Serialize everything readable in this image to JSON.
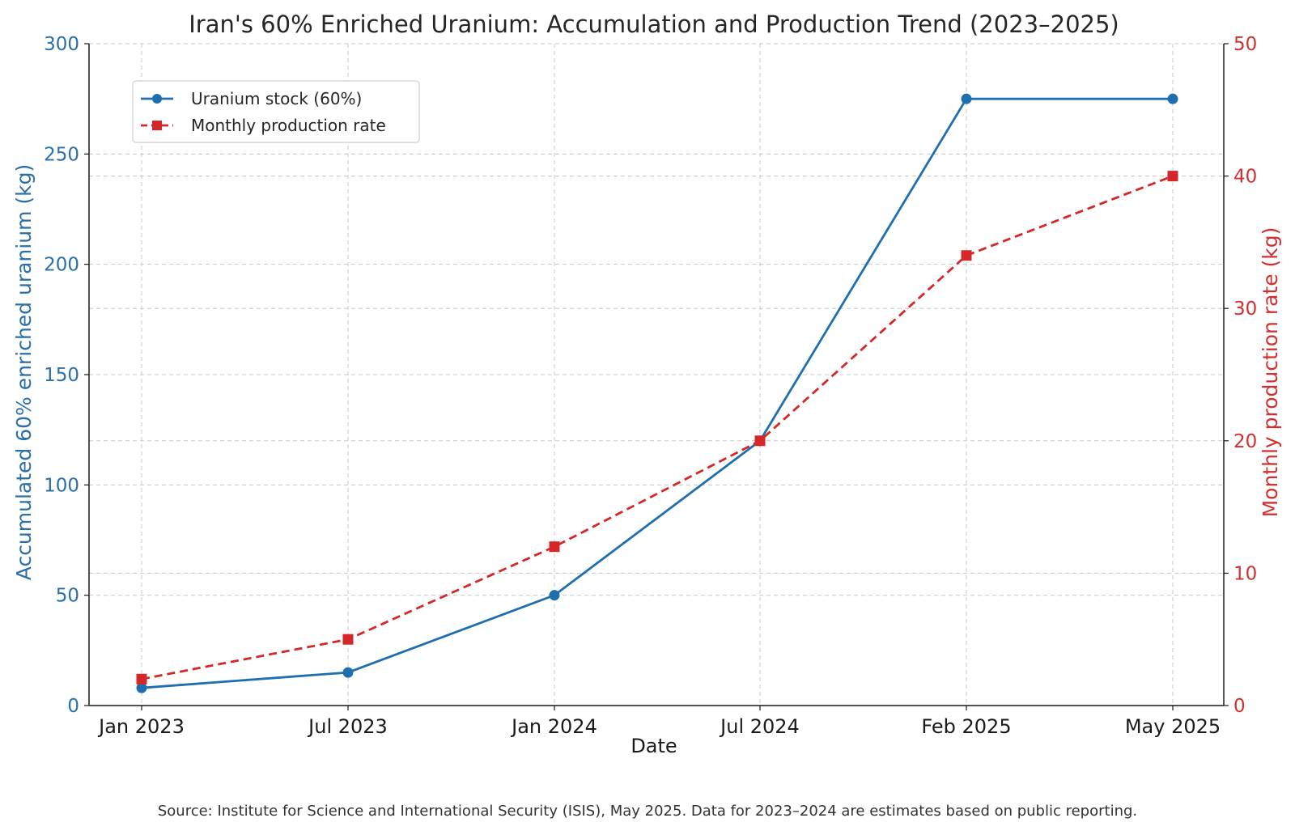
{
  "chart_data": {
    "type": "line",
    "title": "Iran's 60% Enriched Uranium: Accumulation and Production Trend (2023–2025)",
    "xlabel": "Date",
    "ylabel_left": "Accumulated 60% enriched uranium (kg)",
    "ylabel_right": "Monthly production rate (kg)",
    "categories": [
      "Jan 2023",
      "Jul 2023",
      "Jan 2024",
      "Jul 2024",
      "Feb 2025",
      "May 2025"
    ],
    "x_dates": [
      "2023-01",
      "2023-07",
      "2024-01",
      "2024-07",
      "2025-02",
      "2025-05"
    ],
    "ylim_left": [
      0,
      300
    ],
    "ylim_right": [
      0,
      50
    ],
    "yticks_left": [
      0,
      50,
      100,
      150,
      200,
      250,
      300
    ],
    "yticks_right": [
      0,
      10,
      20,
      30,
      40,
      50
    ],
    "grid": true,
    "legend_position": "upper-left",
    "series": [
      {
        "name": "Uranium stock (60%)",
        "axis": "left",
        "color": "#1f6fb0",
        "marker": "circle",
        "line": "solid",
        "values": [
          8,
          15,
          50,
          120,
          275,
          275
        ]
      },
      {
        "name": "Monthly production rate",
        "axis": "right",
        "color": "#d62728",
        "marker": "square",
        "line": "dashed",
        "values": [
          2,
          5,
          12,
          20,
          34,
          40
        ]
      }
    ],
    "source_note": "Source: Institute for Science and International Security (ISIS), May 2025. Data for 2023–2024 are estimates based on public reporting."
  }
}
